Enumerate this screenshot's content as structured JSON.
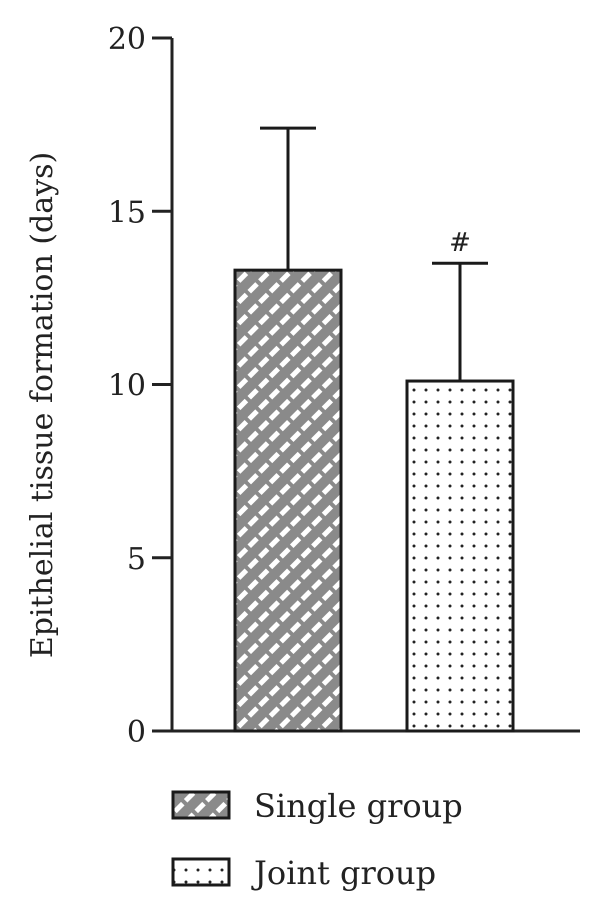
{
  "chart_data": {
    "type": "bar",
    "title": "",
    "xlabel": "",
    "ylabel": "Epithelial tissue formation (days)",
    "ylim": [
      0,
      20
    ],
    "yticks": [
      0,
      5,
      10,
      15,
      20
    ],
    "grid": false,
    "legend_position": "bottom",
    "categories": [
      "Single group",
      "Joint group"
    ],
    "series": [
      {
        "name": "Single group",
        "value": 13.3,
        "error": 4.1,
        "pattern": "diagonal-dashes",
        "fill": "#8a8a8a",
        "annotation": ""
      },
      {
        "name": "Joint group",
        "value": 10.1,
        "error": 3.4,
        "pattern": "dots",
        "fill": "#ffffff",
        "annotation": "#"
      }
    ]
  },
  "colors": {
    "axis": "#222222",
    "bar_edge": "#1a1a1a"
  }
}
